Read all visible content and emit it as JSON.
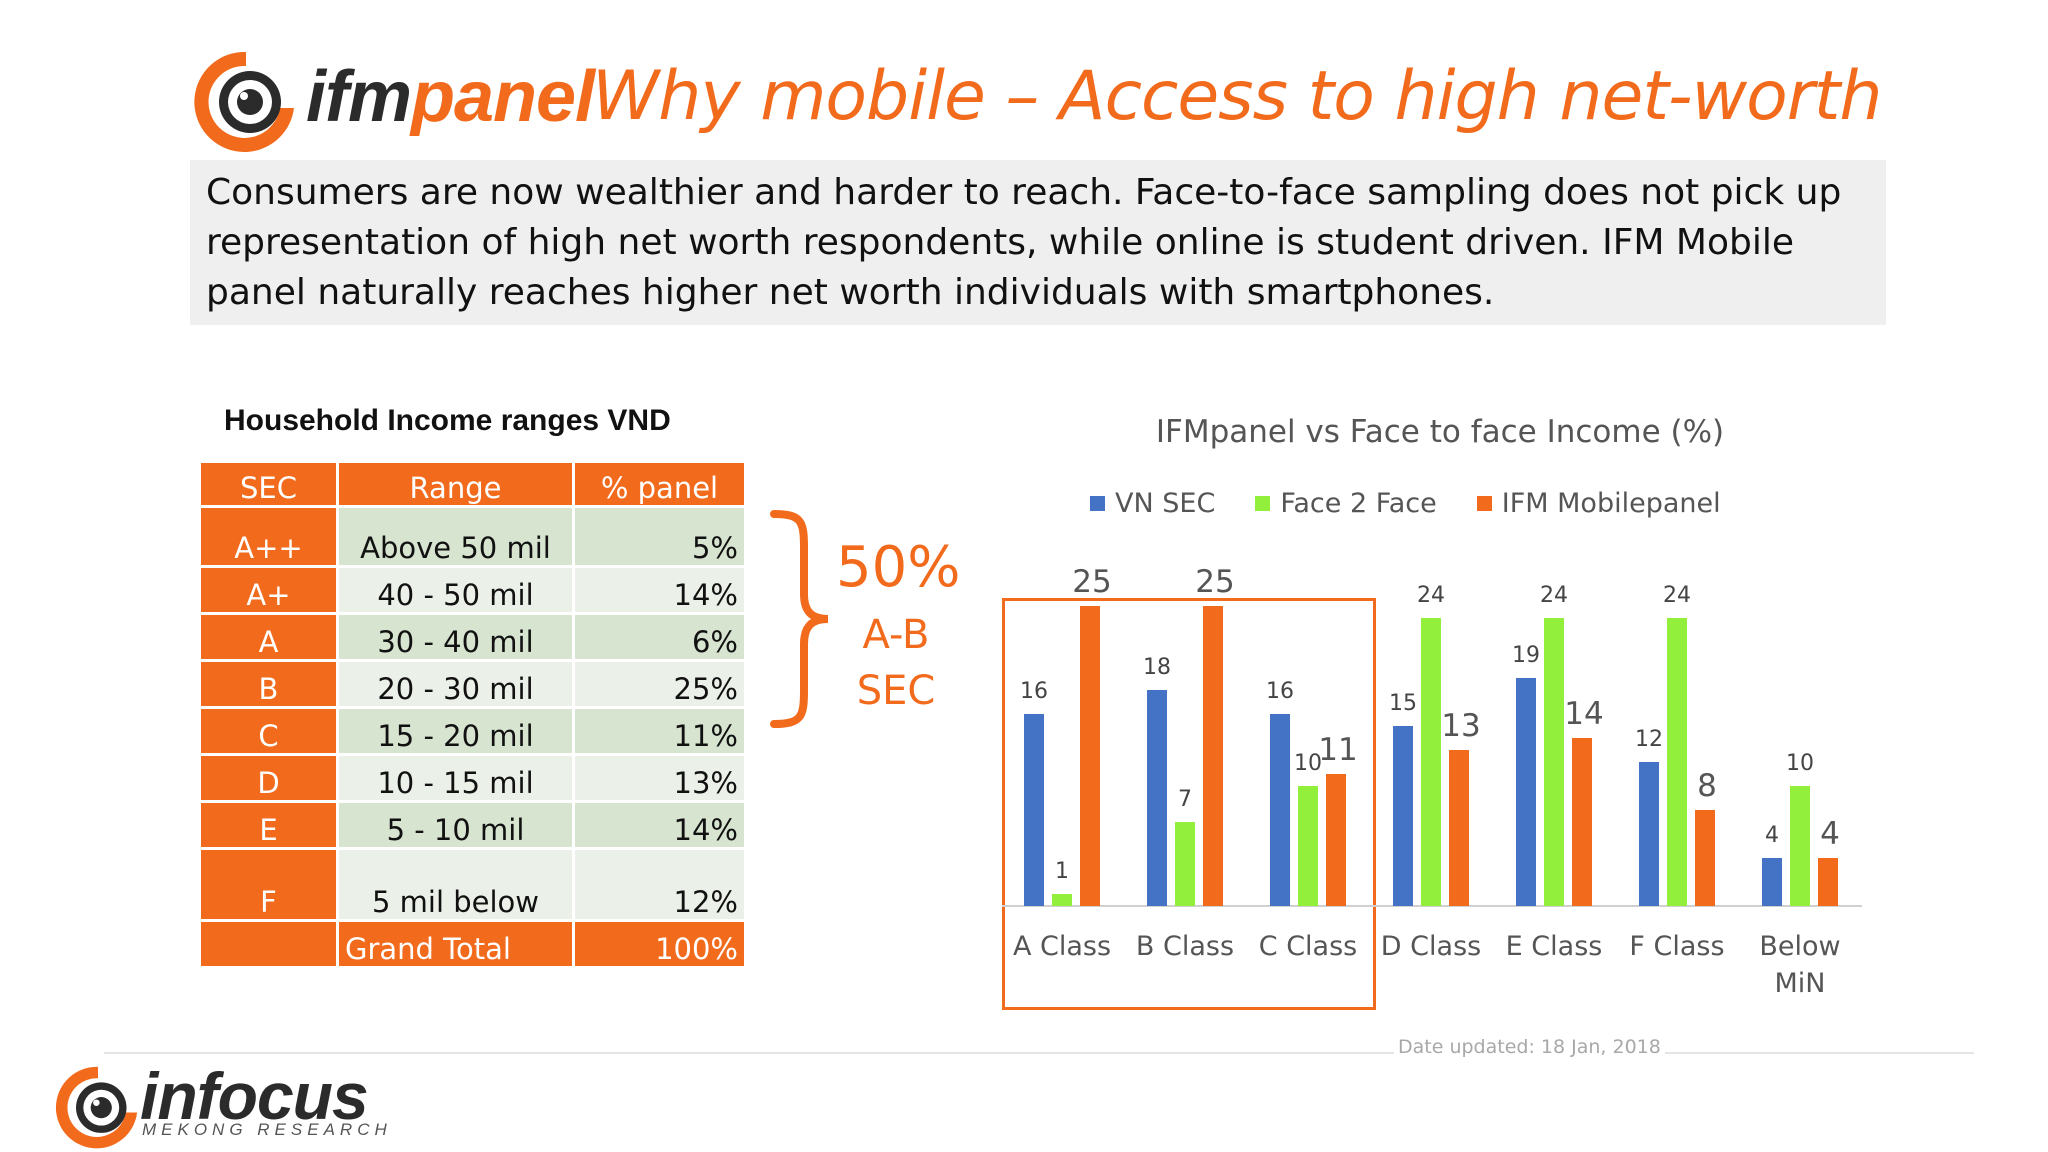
{
  "header": {
    "brand_dark": "ifm",
    "brand_orange": "panel",
    "title": "Why mobile – Access to high net-worth"
  },
  "intro": {
    "text": "Consumers are now wealthier and harder to reach.  Face-to-face sampling does not pick up representation of high net worth respondents, while online is student driven. IFM Mobile panel naturally reaches higher net worth individuals with smartphones."
  },
  "table": {
    "title": "Household Income ranges VND",
    "headers": [
      "SEC",
      "Range",
      "% panel"
    ],
    "rows": [
      {
        "sec": "A++",
        "range": "Above 50 mil",
        "pct": "5%"
      },
      {
        "sec": "A+",
        "range": "40 - 50 mil",
        "pct": "14%"
      },
      {
        "sec": "A",
        "range": "30 - 40 mil",
        "pct": "6%"
      },
      {
        "sec": "B",
        "range": "20 - 30 mil",
        "pct": "25%"
      },
      {
        "sec": "C",
        "range": "15 - 20 mil",
        "pct": "11%"
      },
      {
        "sec": "D",
        "range": "10 - 15 mil",
        "pct": "13%"
      },
      {
        "sec": "E",
        "range": "5 - 10 mil",
        "pct": "14%"
      },
      {
        "sec": "F",
        "range": "5 mil below",
        "pct": "12%"
      }
    ],
    "total": {
      "sec": "",
      "range": "Grand Total",
      "pct": "100%"
    }
  },
  "callout": {
    "percent": "50%",
    "line1": "A-B",
    "line2": "SEC"
  },
  "chart_data": {
    "type": "bar",
    "title": "IFMpanel vs Face to face Income (%)",
    "categories": [
      "A Class",
      "B Class",
      "C Class",
      "D Class",
      "E Class",
      "F Class",
      "Below MiN"
    ],
    "series": [
      {
        "name": "VN SEC",
        "color": "#4472c4",
        "values": [
          16,
          18,
          16,
          15,
          19,
          12,
          4
        ]
      },
      {
        "name": "Face 2 Face",
        "color": "#92f03c",
        "values": [
          1,
          7,
          10,
          24,
          24,
          24,
          10
        ]
      },
      {
        "name": "IFM Mobilepanel",
        "color": "#f26a1b",
        "values": [
          25,
          25,
          11,
          13,
          14,
          8,
          4
        ]
      }
    ],
    "ylim": [
      0,
      25
    ],
    "grid": false,
    "legend": "top",
    "highlight_categories": [
      "A Class",
      "B Class",
      "C Class"
    ]
  },
  "footer": {
    "date_note": "Date updated: 18 Jan, 2018",
    "brand": "infocus",
    "brand_sub": "MEKONG RESEARCH"
  },
  "colors": {
    "accent": "#f26a1b",
    "dark": "#2b2b2b"
  }
}
